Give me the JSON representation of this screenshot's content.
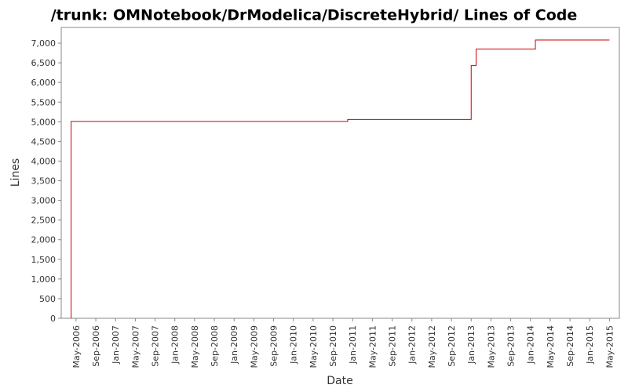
{
  "chart_data": {
    "type": "step-line",
    "title": "/trunk: OMNotebook/DrModelica/DiscreteHybrid/ Lines of Code",
    "x_label": "Date",
    "y_label": "Lines",
    "x": [
      "2006-04",
      "2006-04",
      "2010-12",
      "2013-01",
      "2013-01",
      "2013-02",
      "2014-02",
      "2014-02",
      "2015-05"
    ],
    "series": [
      {
        "name": "Lines",
        "color": "#cc0000",
        "values": [
          0,
          5010,
          5060,
          6000,
          6430,
          6850,
          6980,
          7080,
          7080
        ]
      }
    ],
    "xlim": [
      "2006-02",
      "2015-07"
    ],
    "xticks": [
      {
        "value": "2006-05",
        "label": "May-2006"
      },
      {
        "value": "2006-09",
        "label": "Sep-2006"
      },
      {
        "value": "2007-01",
        "label": "Jan-2007"
      },
      {
        "value": "2007-05",
        "label": "May-2007"
      },
      {
        "value": "2007-09",
        "label": "Sep-2007"
      },
      {
        "value": "2008-01",
        "label": "Jan-2008"
      },
      {
        "value": "2008-05",
        "label": "May-2008"
      },
      {
        "value": "2008-09",
        "label": "Sep-2008"
      },
      {
        "value": "2009-01",
        "label": "Jan-2009"
      },
      {
        "value": "2009-05",
        "label": "May-2009"
      },
      {
        "value": "2009-09",
        "label": "Sep-2009"
      },
      {
        "value": "2010-01",
        "label": "Jan-2010"
      },
      {
        "value": "2010-05",
        "label": "May-2010"
      },
      {
        "value": "2010-09",
        "label": "Sep-2010"
      },
      {
        "value": "2011-01",
        "label": "Jan-2011"
      },
      {
        "value": "2011-05",
        "label": "May-2011"
      },
      {
        "value": "2011-09",
        "label": "Sep-2011"
      },
      {
        "value": "2012-01",
        "label": "Jan-2012"
      },
      {
        "value": "2012-05",
        "label": "May-2012"
      },
      {
        "value": "2012-09",
        "label": "Sep-2012"
      },
      {
        "value": "2013-01",
        "label": "Jan-2013"
      },
      {
        "value": "2013-05",
        "label": "May-2013"
      },
      {
        "value": "2013-09",
        "label": "Sep-2013"
      },
      {
        "value": "2014-01",
        "label": "Jan-2014"
      },
      {
        "value": "2014-05",
        "label": "May-2014"
      },
      {
        "value": "2014-09",
        "label": "Sep-2014"
      },
      {
        "value": "2015-01",
        "label": "Jan-2015"
      },
      {
        "value": "2015-05",
        "label": "May-2015"
      }
    ],
    "ylim": [
      0,
      7400
    ],
    "yticks": [
      0,
      500,
      {
        "value": 1000,
        "label": "1,000"
      },
      {
        "value": 1500,
        "label": "1,500"
      },
      {
        "value": 2000,
        "label": "2,000"
      },
      {
        "value": 2500,
        "label": "2,500"
      },
      {
        "value": 3000,
        "label": "3,000"
      },
      {
        "value": 3500,
        "label": "3,500"
      },
      {
        "value": 4000,
        "label": "4,000"
      },
      {
        "value": 4500,
        "label": "4,500"
      },
      {
        "value": 5000,
        "label": "5,000"
      },
      {
        "value": 5500,
        "label": "5,500"
      },
      {
        "value": 6000,
        "label": "6,000"
      },
      {
        "value": 6500,
        "label": "6,500"
      },
      {
        "value": 7000,
        "label": "7,000"
      }
    ],
    "grid": false
  }
}
